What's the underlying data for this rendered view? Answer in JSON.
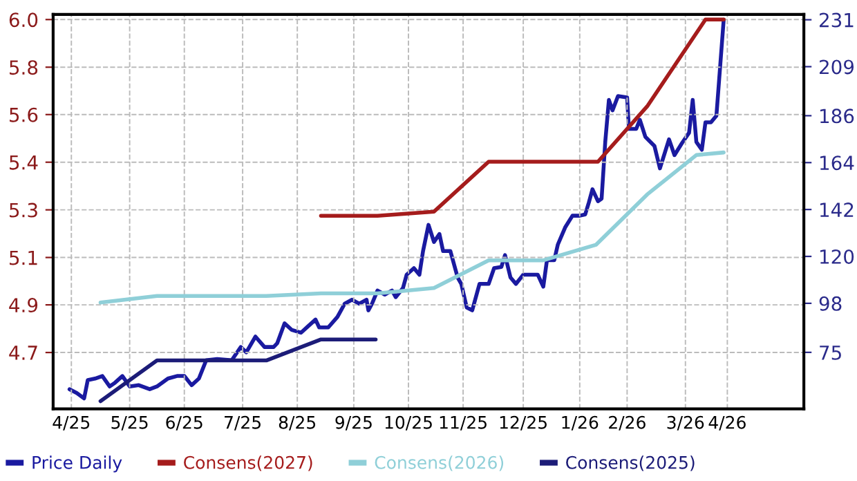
{
  "chart_data": {
    "type": "line",
    "grid": true,
    "legend": "bottom left",
    "xlim": [
      "2025-04-05",
      "2026-05-22"
    ],
    "xticks": [
      {
        "value": "2025-04-15",
        "label": "4/25"
      },
      {
        "value": "2025-05-17",
        "label": "5/25"
      },
      {
        "value": "2025-06-16",
        "label": "6/25"
      },
      {
        "value": "2025-07-18",
        "label": "7/25"
      },
      {
        "value": "2025-08-17",
        "label": "8/25"
      },
      {
        "value": "2025-09-17",
        "label": "9/25"
      },
      {
        "value": "2025-10-17",
        "label": "10/25"
      },
      {
        "value": "2025-11-16",
        "label": "11/25"
      },
      {
        "value": "2025-12-19",
        "label": "12/25"
      },
      {
        "value": "2026-01-19",
        "label": "1/26"
      },
      {
        "value": "2026-02-14",
        "label": "2/26"
      },
      {
        "value": "2026-03-18",
        "label": "3/26"
      },
      {
        "value": "2026-04-10",
        "label": "4/26"
      }
    ],
    "ylim": [
      4.48,
      6.02
    ],
    "yticks": [
      4.7,
      {
        "value": 4.886,
        "label": "4.9"
      },
      {
        "value": 5.071,
        "label": "5.1"
      },
      {
        "value": 5.257,
        "label": "5.3"
      },
      {
        "value": 5.443,
        "label": "5.4"
      },
      {
        "value": 5.629,
        "label": "5.6"
      },
      {
        "value": 5.814,
        "label": "5.8"
      },
      {
        "value": 6.0,
        "label": "6.0"
      }
    ],
    "y2lim": [
      48.5,
      233.5
    ],
    "y2ticks": [
      75,
      98,
      120,
      142,
      164,
      186,
      209,
      231
    ],
    "series": [
      {
        "name": "Price Daily",
        "color": "#1a1aa0",
        "axis": "y2",
        "x": [
          "2025-04-14",
          "2025-04-18",
          "2025-04-22",
          "2025-04-24",
          "2025-04-28",
          "2025-05-02",
          "2025-05-06",
          "2025-05-09",
          "2025-05-13",
          "2025-05-17",
          "2025-05-22",
          "2025-05-28",
          "2025-06-01",
          "2025-06-07",
          "2025-06-12",
          "2025-06-16",
          "2025-06-20",
          "2025-06-24",
          "2025-06-28",
          "2025-07-04",
          "2025-07-12",
          "2025-07-17",
          "2025-07-20",
          "2025-07-25",
          "2025-07-30",
          "2025-08-04",
          "2025-08-06",
          "2025-08-10",
          "2025-08-14",
          "2025-08-19",
          "2025-08-23",
          "2025-08-27",
          "2025-08-29",
          "2025-09-03",
          "2025-09-08",
          "2025-09-12",
          "2025-09-16",
          "2025-09-20",
          "2025-09-24",
          "2025-09-25",
          "2025-09-27",
          "2025-09-30",
          "2025-10-04",
          "2025-10-08",
          "2025-10-10",
          "2025-10-14",
          "2025-10-16",
          "2025-10-20",
          "2025-10-23",
          "2025-10-25",
          "2025-10-28",
          "2025-10-31",
          "2025-11-03",
          "2025-11-05",
          "2025-11-09",
          "2025-11-13",
          "2025-11-15",
          "2025-11-18",
          "2025-11-21",
          "2025-11-25",
          "2025-11-30",
          "2025-12-03",
          "2025-12-07",
          "2025-12-09",
          "2025-12-12",
          "2025-12-15",
          "2025-12-19",
          "2025-12-23",
          "2025-12-27",
          "2025-12-30",
          "2026-01-01",
          "2026-01-05",
          "2026-01-07",
          "2026-01-11",
          "2026-01-15",
          "2026-01-19",
          "2026-01-22",
          "2026-01-24",
          "2026-01-26",
          "2026-01-29",
          "2026-01-31",
          "2026-02-02",
          "2026-02-04",
          "2026-02-06",
          "2026-02-09",
          "2026-02-14",
          "2026-02-15",
          "2026-02-19",
          "2026-02-21",
          "2026-02-24",
          "2026-03-01",
          "2026-03-04",
          "2026-03-09",
          "2026-03-12",
          "2026-03-16",
          "2026-03-20",
          "2026-03-22",
          "2026-03-24",
          "2026-03-27",
          "2026-03-29",
          "2026-04-01",
          "2026-04-04",
          "2026-04-08"
        ],
        "values": [
          57.7,
          55.9,
          53.4,
          62.0,
          62.7,
          63.9,
          59.0,
          60.8,
          63.9,
          59.0,
          59.6,
          57.7,
          59.0,
          62.7,
          63.9,
          63.9,
          59.6,
          62.7,
          71.3,
          71.9,
          71.3,
          77.5,
          75.0,
          82.4,
          77.5,
          77.5,
          79.3,
          88.6,
          85.5,
          84.2,
          87.3,
          90.4,
          86.7,
          86.7,
          91.6,
          97.8,
          99.7,
          97.8,
          99.7,
          94.7,
          97.8,
          104.0,
          102.1,
          104.0,
          100.9,
          105.2,
          111.4,
          114.5,
          111.4,
          122.5,
          134.8,
          126.8,
          130.5,
          122.5,
          122.5,
          110.1,
          107.1,
          96.0,
          94.7,
          107.1,
          107.1,
          114.5,
          115.1,
          120.6,
          110.1,
          107.1,
          111.4,
          111.4,
          111.4,
          105.8,
          118.2,
          118.2,
          125.6,
          133.6,
          139.1,
          139.1,
          139.7,
          145.3,
          151.5,
          145.9,
          147.1,
          173.7,
          193.4,
          188.5,
          195.2,
          194.6,
          179.8,
          179.8,
          184.1,
          176.1,
          171.8,
          161.3,
          174.9,
          167.5,
          173.0,
          178.0,
          193.4,
          173.7,
          170.0,
          182.9,
          182.9,
          186.0,
          231
        ]
      },
      {
        "name": "Consens(2027)",
        "color": "#a51c1c",
        "x": [
          "2025-08-30",
          "2025-09-30",
          "2025-10-31",
          "2025-11-30",
          "2026-01-29",
          "2026-02-25",
          "2026-03-29",
          "2026-04-08"
        ],
        "values": [
          5.234,
          5.234,
          5.25,
          5.445,
          5.445,
          5.661,
          6.0,
          6.0
        ]
      },
      {
        "name": "Consens(2026)",
        "color": "#8fcfd8",
        "x": [
          "2025-05-01",
          "2025-06-01",
          "2025-07-31",
          "2025-08-30",
          "2025-09-30",
          "2025-10-31",
          "2025-11-30",
          "2025-12-30",
          "2026-01-28",
          "2026-02-25",
          "2026-03-24",
          "2026-04-08"
        ],
        "values": [
          4.895,
          4.921,
          4.921,
          4.931,
          4.931,
          4.952,
          5.06,
          5.06,
          5.121,
          5.317,
          5.471,
          5.481
        ]
      },
      {
        "name": "Consens(2025)",
        "color": "#1c1c78",
        "x": [
          "2025-05-01",
          "2025-06-01",
          "2025-07-31",
          "2025-08-30",
          "2025-09-29"
        ],
        "values": [
          4.51,
          4.669,
          4.669,
          4.751,
          4.751
        ]
      }
    ]
  }
}
